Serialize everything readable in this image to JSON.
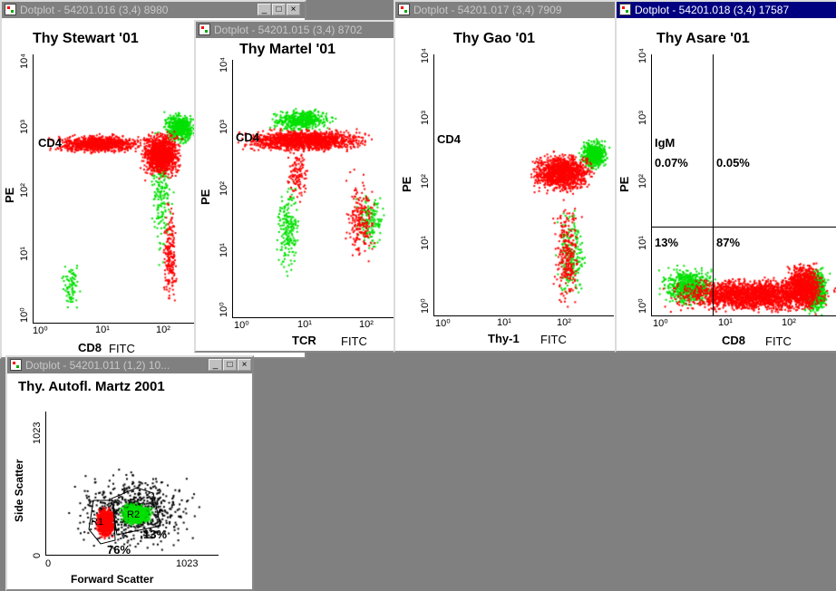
{
  "windows": [
    {
      "title": "Dotplot - 54201.016 (3,4) 8980",
      "plot_title": "Thy Stewart '01",
      "y_label": "PE",
      "x_label": "CD8",
      "x_channel": "FITC",
      "marker": "CD4"
    },
    {
      "title": "Dotplot - 54201.015 (3,4) 8702",
      "plot_title": "Thy Martel '01",
      "y_label": "PE",
      "x_label": "TCR",
      "x_channel": "FITC",
      "marker": "CD4"
    },
    {
      "title": "Dotplot - 54201.017 (3,4) 7909",
      "plot_title": "Thy Gao '01",
      "y_label": "PE",
      "x_label": "Thy-1",
      "x_channel": "FITC",
      "marker": "CD4"
    },
    {
      "title": "Dotplot - 54201.018 (3,4) 17587",
      "plot_title": "Thy Asare '01",
      "y_label": "PE",
      "x_label": "CD8",
      "x_channel": "FITC",
      "marker": "IgM",
      "quadrants": {
        "ul": "0.07%",
        "ur": "0.05%",
        "ll": "13%",
        "lr": "87%"
      }
    },
    {
      "title": "Dotplot - 54201.011 (1,2) 10...",
      "plot_title": "Thy. Autofl. Martz 2001",
      "y_label": "Side Scatter",
      "x_label": "Forward Scatter",
      "y_max": "1023",
      "y_min": "0",
      "x_min": "0",
      "x_max": "1023",
      "gates": {
        "r1": "R1",
        "r2": "R2",
        "r1_pct": "76%",
        "r2_pct": "13%"
      }
    }
  ],
  "log_ticks": {
    "t0": "10⁰",
    "t1": "10¹",
    "t2": "10²",
    "t3": "10³",
    "t4": "10⁴"
  },
  "controls": {
    "min": "_",
    "max": "□",
    "close": "×"
  },
  "colors": {
    "red": "#ff0000",
    "green": "#00e000",
    "active_title": "#000080"
  }
}
